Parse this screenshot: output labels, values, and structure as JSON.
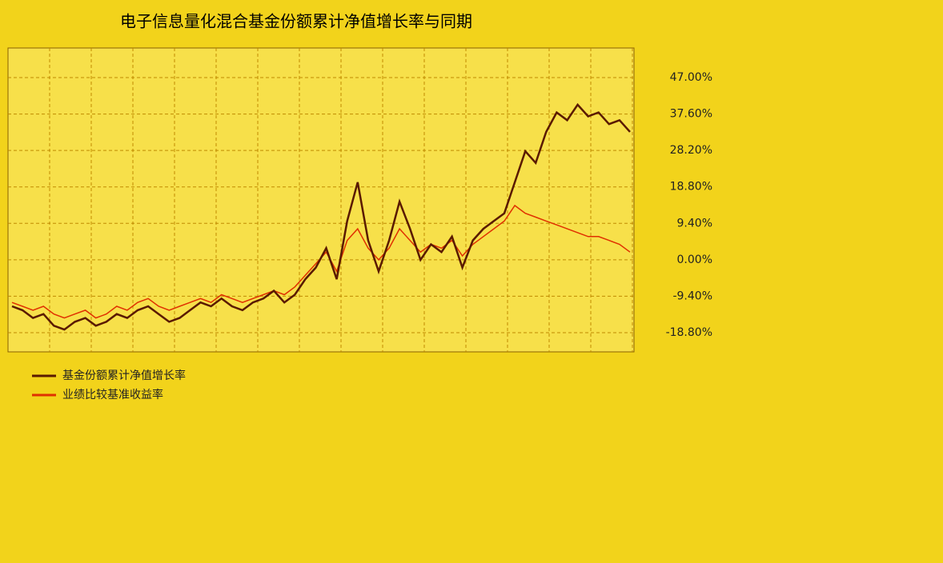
{
  "chart_data": {
    "type": "line",
    "title": "电子信息量化混合基金份额累计净值增长率与同期",
    "series": [
      {
        "name": "基金份额累计净值增长率",
        "color": "#5a1a00",
        "values": [
          -12,
          -13,
          -15,
          -14,
          -17,
          -18,
          -16,
          -15,
          -17,
          -16,
          -14,
          -15,
          -13,
          -12,
          -14,
          -16,
          -15,
          -13,
          -11,
          -12,
          -10,
          -12,
          -13,
          -11,
          -10,
          -8,
          -11,
          -9,
          -5,
          -2,
          3,
          -5,
          10,
          20,
          5,
          -3,
          5,
          15,
          8,
          0,
          4,
          2,
          6,
          -2,
          5,
          8,
          10,
          12,
          20,
          28,
          25,
          33,
          38,
          36,
          40,
          37,
          38,
          35,
          36,
          33
        ]
      },
      {
        "name": "业绩比较基准收益率",
        "color": "#e03000",
        "values": [
          -11,
          -12,
          -13,
          -12,
          -14,
          -15,
          -14,
          -13,
          -15,
          -14,
          -12,
          -13,
          -11,
          -10,
          -12,
          -13,
          -12,
          -11,
          -10,
          -11,
          -9,
          -10,
          -11,
          -10,
          -9,
          -8,
          -9,
          -7,
          -4,
          -1,
          2,
          -3,
          5,
          8,
          3,
          0,
          3,
          8,
          5,
          2,
          4,
          3,
          5,
          1,
          4,
          6,
          8,
          10,
          14,
          12,
          11,
          10,
          9,
          8,
          7,
          6,
          6,
          5,
          4,
          2
        ]
      }
    ],
    "ylim": [
      -18.8,
      47
    ],
    "yticks": [
      {
        "value": -18.8,
        "label": "-18.80%"
      },
      {
        "value": -9.4,
        "label": "-9.40%"
      },
      {
        "value": 0,
        "label": "0.00%"
      },
      {
        "value": 9.4,
        "label": "9.40%"
      },
      {
        "value": 18.8,
        "label": "18.80%"
      },
      {
        "value": 28.2,
        "label": "28.20%"
      },
      {
        "value": 37.6,
        "label": "37.60%"
      },
      {
        "value": 47,
        "label": "47.00%"
      }
    ],
    "grid": true
  }
}
